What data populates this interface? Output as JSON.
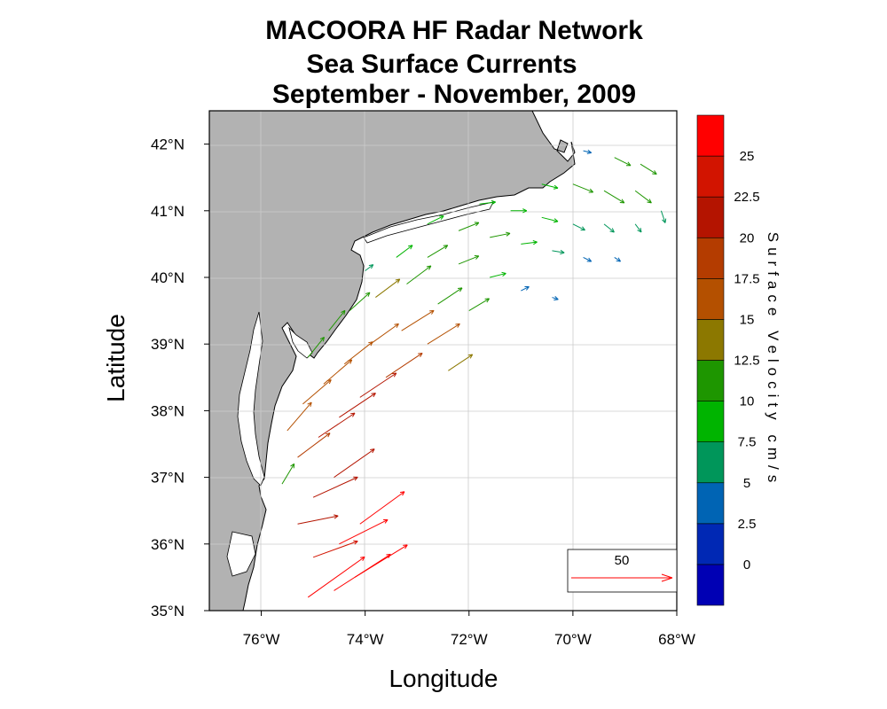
{
  "chart_data": {
    "type": "vector-map",
    "title_lines": [
      "MACOORA HF Radar Network",
      "Sea Surface Currents",
      "September - November, 2009"
    ],
    "xlabel": "Longitude",
    "ylabel": "Latitude",
    "xlim": [
      -77,
      -68
    ],
    "ylim": [
      35,
      42.5
    ],
    "x_ticks": [
      {
        "value": -76,
        "label": "76°W"
      },
      {
        "value": -74,
        "label": "74°W"
      },
      {
        "value": -72,
        "label": "72°W"
      },
      {
        "value": -70,
        "label": "70°W"
      },
      {
        "value": -68,
        "label": "68°W"
      }
    ],
    "y_ticks": [
      {
        "value": 35,
        "label": "35°N"
      },
      {
        "value": 36,
        "label": "36°N"
      },
      {
        "value": 37,
        "label": "37°N"
      },
      {
        "value": 38,
        "label": "38°N"
      },
      {
        "value": 39,
        "label": "39°N"
      },
      {
        "value": 40,
        "label": "40°N"
      },
      {
        "value": 41,
        "label": "41°N"
      },
      {
        "value": 42,
        "label": "42°N"
      }
    ],
    "grid": true,
    "land_color": "#b2b2b2",
    "colorbar": {
      "title": "Surface Velocity cm/s",
      "label_values": [
        "0",
        "2.5",
        "5",
        "7.5",
        "10",
        "12.5",
        "15",
        "17.5",
        "20",
        "22.5",
        "25"
      ],
      "colors": [
        "#0000b4",
        "#0028b4",
        "#0064b4",
        "#00965a",
        "#00b400",
        "#1e9600",
        "#8c7800",
        "#b45000",
        "#b43c00",
        "#b41400",
        "#d21400",
        "#ff0000"
      ]
    },
    "reference_vector": {
      "value": 50,
      "label": "50",
      "units": "cm/s"
    },
    "vector_field": [
      {
        "lon": -75.1,
        "lat": 35.2,
        "u": 28,
        "v": 20,
        "speed": 28
      },
      {
        "lon": -74.6,
        "lat": 35.3,
        "u": 28,
        "v": 18,
        "speed": 28
      },
      {
        "lon": -74.2,
        "lat": 35.5,
        "u": 26,
        "v": 16,
        "speed": 27
      },
      {
        "lon": -75.0,
        "lat": 35.8,
        "u": 22,
        "v": 8,
        "speed": 24
      },
      {
        "lon": -74.5,
        "lat": 36.0,
        "u": 24,
        "v": 12,
        "speed": 25
      },
      {
        "lon": -74.1,
        "lat": 36.3,
        "u": 22,
        "v": 16,
        "speed": 25
      },
      {
        "lon": -75.3,
        "lat": 36.3,
        "u": 20,
        "v": 4,
        "speed": 22
      },
      {
        "lon": -75.0,
        "lat": 36.7,
        "u": 22,
        "v": 10,
        "speed": 20
      },
      {
        "lon": -74.6,
        "lat": 37.0,
        "u": 20,
        "v": 14,
        "speed": 21
      },
      {
        "lon": -75.6,
        "lat": 36.9,
        "u": 6,
        "v": 10,
        "speed": 11
      },
      {
        "lon": -75.3,
        "lat": 37.3,
        "u": 16,
        "v": 12,
        "speed": 18
      },
      {
        "lon": -74.9,
        "lat": 37.6,
        "u": 18,
        "v": 12,
        "speed": 21
      },
      {
        "lon": -74.5,
        "lat": 37.9,
        "u": 18,
        "v": 12,
        "speed": 21
      },
      {
        "lon": -74.1,
        "lat": 38.2,
        "u": 18,
        "v": 12,
        "speed": 20
      },
      {
        "lon": -73.6,
        "lat": 38.5,
        "u": 18,
        "v": 12,
        "speed": 19
      },
      {
        "lon": -75.5,
        "lat": 37.7,
        "u": 12,
        "v": 14,
        "speed": 16
      },
      {
        "lon": -75.2,
        "lat": 38.1,
        "u": 14,
        "v": 12,
        "speed": 17
      },
      {
        "lon": -74.8,
        "lat": 38.4,
        "u": 14,
        "v": 12,
        "speed": 17
      },
      {
        "lon": -74.4,
        "lat": 38.7,
        "u": 14,
        "v": 11,
        "speed": 17
      },
      {
        "lon": -73.9,
        "lat": 39.0,
        "u": 14,
        "v": 10,
        "speed": 16
      },
      {
        "lon": -73.3,
        "lat": 39.2,
        "u": 16,
        "v": 10,
        "speed": 17
      },
      {
        "lon": -72.8,
        "lat": 39.0,
        "u": 16,
        "v": 10,
        "speed": 16
      },
      {
        "lon": -72.4,
        "lat": 38.6,
        "u": 12,
        "v": 8,
        "speed": 13
      },
      {
        "lon": -75.1,
        "lat": 38.8,
        "u": 8,
        "v": 10,
        "speed": 11
      },
      {
        "lon": -74.7,
        "lat": 39.2,
        "u": 8,
        "v": 10,
        "speed": 11
      },
      {
        "lon": -74.3,
        "lat": 39.5,
        "u": 10,
        "v": 9,
        "speed": 12
      },
      {
        "lon": -73.8,
        "lat": 39.7,
        "u": 12,
        "v": 9,
        "speed": 13
      },
      {
        "lon": -73.2,
        "lat": 39.9,
        "u": 12,
        "v": 9,
        "speed": 12
      },
      {
        "lon": -72.6,
        "lat": 39.6,
        "u": 12,
        "v": 8,
        "speed": 12
      },
      {
        "lon": -72.0,
        "lat": 39.5,
        "u": 10,
        "v": 6,
        "speed": 10
      },
      {
        "lon": -74.0,
        "lat": 40.1,
        "u": 4,
        "v": 3,
        "speed": 5
      },
      {
        "lon": -73.4,
        "lat": 40.3,
        "u": 8,
        "v": 6,
        "speed": 9
      },
      {
        "lon": -72.8,
        "lat": 40.3,
        "u": 10,
        "v": 6,
        "speed": 10
      },
      {
        "lon": -72.2,
        "lat": 40.2,
        "u": 10,
        "v": 4,
        "speed": 10
      },
      {
        "lon": -71.6,
        "lat": 40.0,
        "u": 8,
        "v": 2,
        "speed": 8
      },
      {
        "lon": -71.0,
        "lat": 39.8,
        "u": 4,
        "v": 2,
        "speed": 4
      },
      {
        "lon": -70.4,
        "lat": 39.7,
        "u": 3,
        "v": -1,
        "speed": 3
      },
      {
        "lon": -72.8,
        "lat": 40.8,
        "u": 8,
        "v": 4,
        "speed": 9
      },
      {
        "lon": -72.2,
        "lat": 40.7,
        "u": 10,
        "v": 4,
        "speed": 10
      },
      {
        "lon": -71.6,
        "lat": 40.6,
        "u": 10,
        "v": 2,
        "speed": 10
      },
      {
        "lon": -71.0,
        "lat": 40.5,
        "u": 8,
        "v": 1,
        "speed": 8
      },
      {
        "lon": -70.4,
        "lat": 40.4,
        "u": 6,
        "v": -1,
        "speed": 6
      },
      {
        "lon": -69.8,
        "lat": 40.3,
        "u": 4,
        "v": -2,
        "speed": 4
      },
      {
        "lon": -69.2,
        "lat": 40.3,
        "u": 3,
        "v": -2,
        "speed": 3
      },
      {
        "lon": -71.8,
        "lat": 41.1,
        "u": 8,
        "v": 1,
        "speed": 8
      },
      {
        "lon": -71.2,
        "lat": 41.0,
        "u": 8,
        "v": 0,
        "speed": 8
      },
      {
        "lon": -70.6,
        "lat": 40.9,
        "u": 8,
        "v": -2,
        "speed": 8
      },
      {
        "lon": -70.0,
        "lat": 40.8,
        "u": 6,
        "v": -3,
        "speed": 7
      },
      {
        "lon": -69.4,
        "lat": 40.8,
        "u": 5,
        "v": -4,
        "speed": 6
      },
      {
        "lon": -68.8,
        "lat": 40.8,
        "u": 3,
        "v": -4,
        "speed": 5
      },
      {
        "lon": -70.6,
        "lat": 41.4,
        "u": 8,
        "v": -2,
        "speed": 8
      },
      {
        "lon": -70.0,
        "lat": 41.4,
        "u": 10,
        "v": -4,
        "speed": 11
      },
      {
        "lon": -69.4,
        "lat": 41.3,
        "u": 10,
        "v": -6,
        "speed": 12
      },
      {
        "lon": -68.8,
        "lat": 41.3,
        "u": 8,
        "v": -6,
        "speed": 10
      },
      {
        "lon": -68.3,
        "lat": 41.0,
        "u": 2,
        "v": -6,
        "speed": 6
      },
      {
        "lon": -69.8,
        "lat": 41.9,
        "u": 4,
        "v": -1,
        "speed": 4
      },
      {
        "lon": -69.2,
        "lat": 41.8,
        "u": 8,
        "v": -4,
        "speed": 10
      },
      {
        "lon": -68.7,
        "lat": 41.7,
        "u": 8,
        "v": -5,
        "speed": 10
      }
    ]
  }
}
